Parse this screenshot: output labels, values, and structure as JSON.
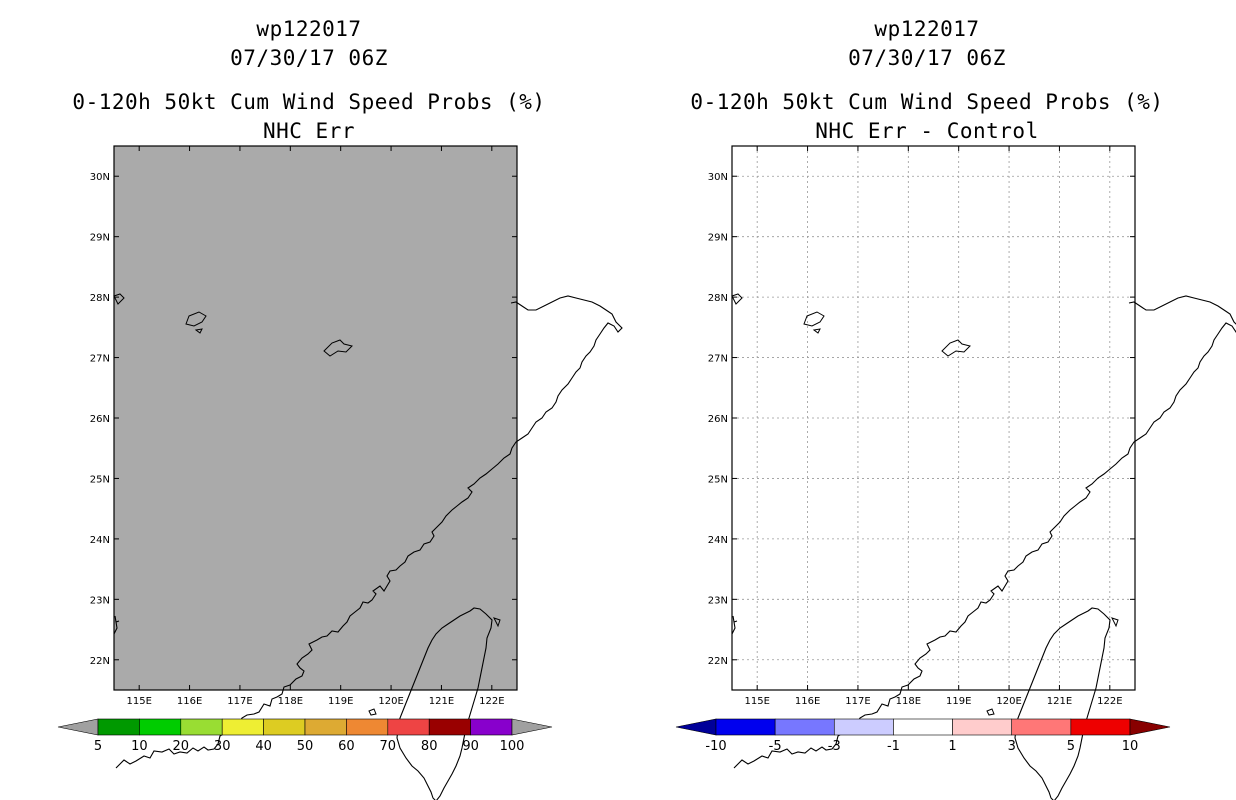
{
  "panels": [
    {
      "id": "left",
      "title_storm": "wp122017",
      "title_date": "07/30/17 06Z",
      "title_product": "0-120h 50kt Cum Wind Speed Probs (%)",
      "title_sub": "NHC Err",
      "background": "#aaaaaa",
      "gridlines": false,
      "colorbar": {
        "labels": [
          "5",
          "10",
          "20",
          "30",
          "40",
          "50",
          "60",
          "70",
          "80",
          "90",
          "100"
        ],
        "colors": [
          "#a0a0a0",
          "#009900",
          "#00cc00",
          "#99dd33",
          "#eeee33",
          "#ddcc22",
          "#ddaa33",
          "#ee8833",
          "#ee4444",
          "#990000",
          "#8800cc",
          "#a0a0a0"
        ]
      }
    },
    {
      "id": "right",
      "title_storm": "wp122017",
      "title_date": "07/30/17 06Z",
      "title_product": "0-120h 50kt Cum Wind Speed Probs (%)",
      "title_sub": "NHC Err - Control",
      "background": "#ffffff",
      "gridlines": true,
      "colorbar": {
        "labels": [
          "-10",
          "-5",
          "-3",
          "-1",
          "1",
          "3",
          "5",
          "10"
        ],
        "colors": [
          "#000099",
          "#0000ee",
          "#7777ff",
          "#ccccff",
          "#ffffff",
          "#ffcccc",
          "#ff7777",
          "#ee0000",
          "#880000"
        ]
      }
    }
  ],
  "map": {
    "lon_labels": [
      "115E",
      "116E",
      "117E",
      "118E",
      "119E",
      "120E",
      "121E",
      "122E"
    ],
    "lat_labels": [
      "30N",
      "29N",
      "28N",
      "27N",
      "26N",
      "25N",
      "24N",
      "23N",
      "22N"
    ],
    "lon_values": [
      115,
      116,
      117,
      118,
      119,
      120,
      121,
      122
    ],
    "lat_values": [
      30,
      29,
      28,
      27,
      26,
      25,
      24,
      23,
      22
    ],
    "lon_range": [
      114.5,
      122.5
    ],
    "lat_range": [
      21.5,
      30.5
    ]
  }
}
